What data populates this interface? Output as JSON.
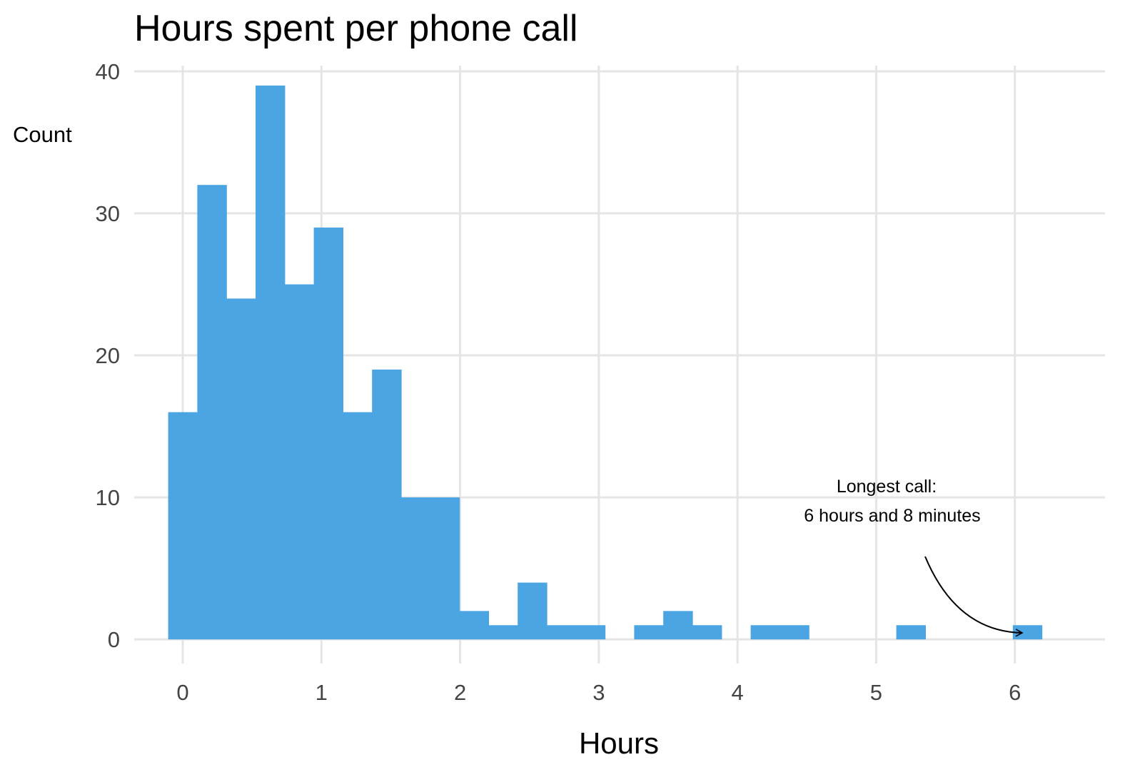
{
  "chart_data": {
    "type": "bar",
    "title": "Hours spent per phone call",
    "xlabel": "Hours",
    "ylabel": "Count",
    "xlim": [
      -0.35,
      6.65
    ],
    "ylim": [
      -1.7,
      40.4
    ],
    "xticks": [
      0,
      1,
      2,
      3,
      4,
      5,
      6
    ],
    "yticks": [
      0,
      10,
      20,
      30,
      40
    ],
    "bin_width": 0.21,
    "bins": [
      {
        "x": 0.0,
        "count": 16
      },
      {
        "x": 0.21,
        "count": 32
      },
      {
        "x": 0.42,
        "count": 24
      },
      {
        "x": 0.63,
        "count": 39
      },
      {
        "x": 0.84,
        "count": 25
      },
      {
        "x": 1.05,
        "count": 29
      },
      {
        "x": 1.26,
        "count": 16
      },
      {
        "x": 1.47,
        "count": 19
      },
      {
        "x": 1.68,
        "count": 10
      },
      {
        "x": 1.89,
        "count": 10
      },
      {
        "x": 2.1,
        "count": 2
      },
      {
        "x": 2.31,
        "count": 1
      },
      {
        "x": 2.52,
        "count": 4
      },
      {
        "x": 2.73,
        "count": 1
      },
      {
        "x": 2.94,
        "count": 1
      },
      {
        "x": 3.15,
        "count": 0
      },
      {
        "x": 3.36,
        "count": 1
      },
      {
        "x": 3.57,
        "count": 2
      },
      {
        "x": 3.78,
        "count": 1
      },
      {
        "x": 3.99,
        "count": 0
      },
      {
        "x": 4.2,
        "count": 1
      },
      {
        "x": 4.41,
        "count": 1
      },
      {
        "x": 4.62,
        "count": 0
      },
      {
        "x": 4.83,
        "count": 0
      },
      {
        "x": 5.04,
        "count": 0
      },
      {
        "x": 5.25,
        "count": 1
      },
      {
        "x": 5.46,
        "count": 0
      },
      {
        "x": 5.67,
        "count": 0
      },
      {
        "x": 5.88,
        "count": 0
      },
      {
        "x": 6.09,
        "count": 1
      }
    ],
    "grid": true,
    "legend": "none",
    "annotation": {
      "lines": [
        "Longest call:",
        "6 hours and  8 minutes"
      ],
      "arrow_to": {
        "x": 5.95,
        "y": 0.5
      }
    }
  },
  "colors": {
    "bar": "#4AA5E2",
    "grid": "#e5e5e5",
    "tick_text": "#444444",
    "text": "#000000"
  }
}
